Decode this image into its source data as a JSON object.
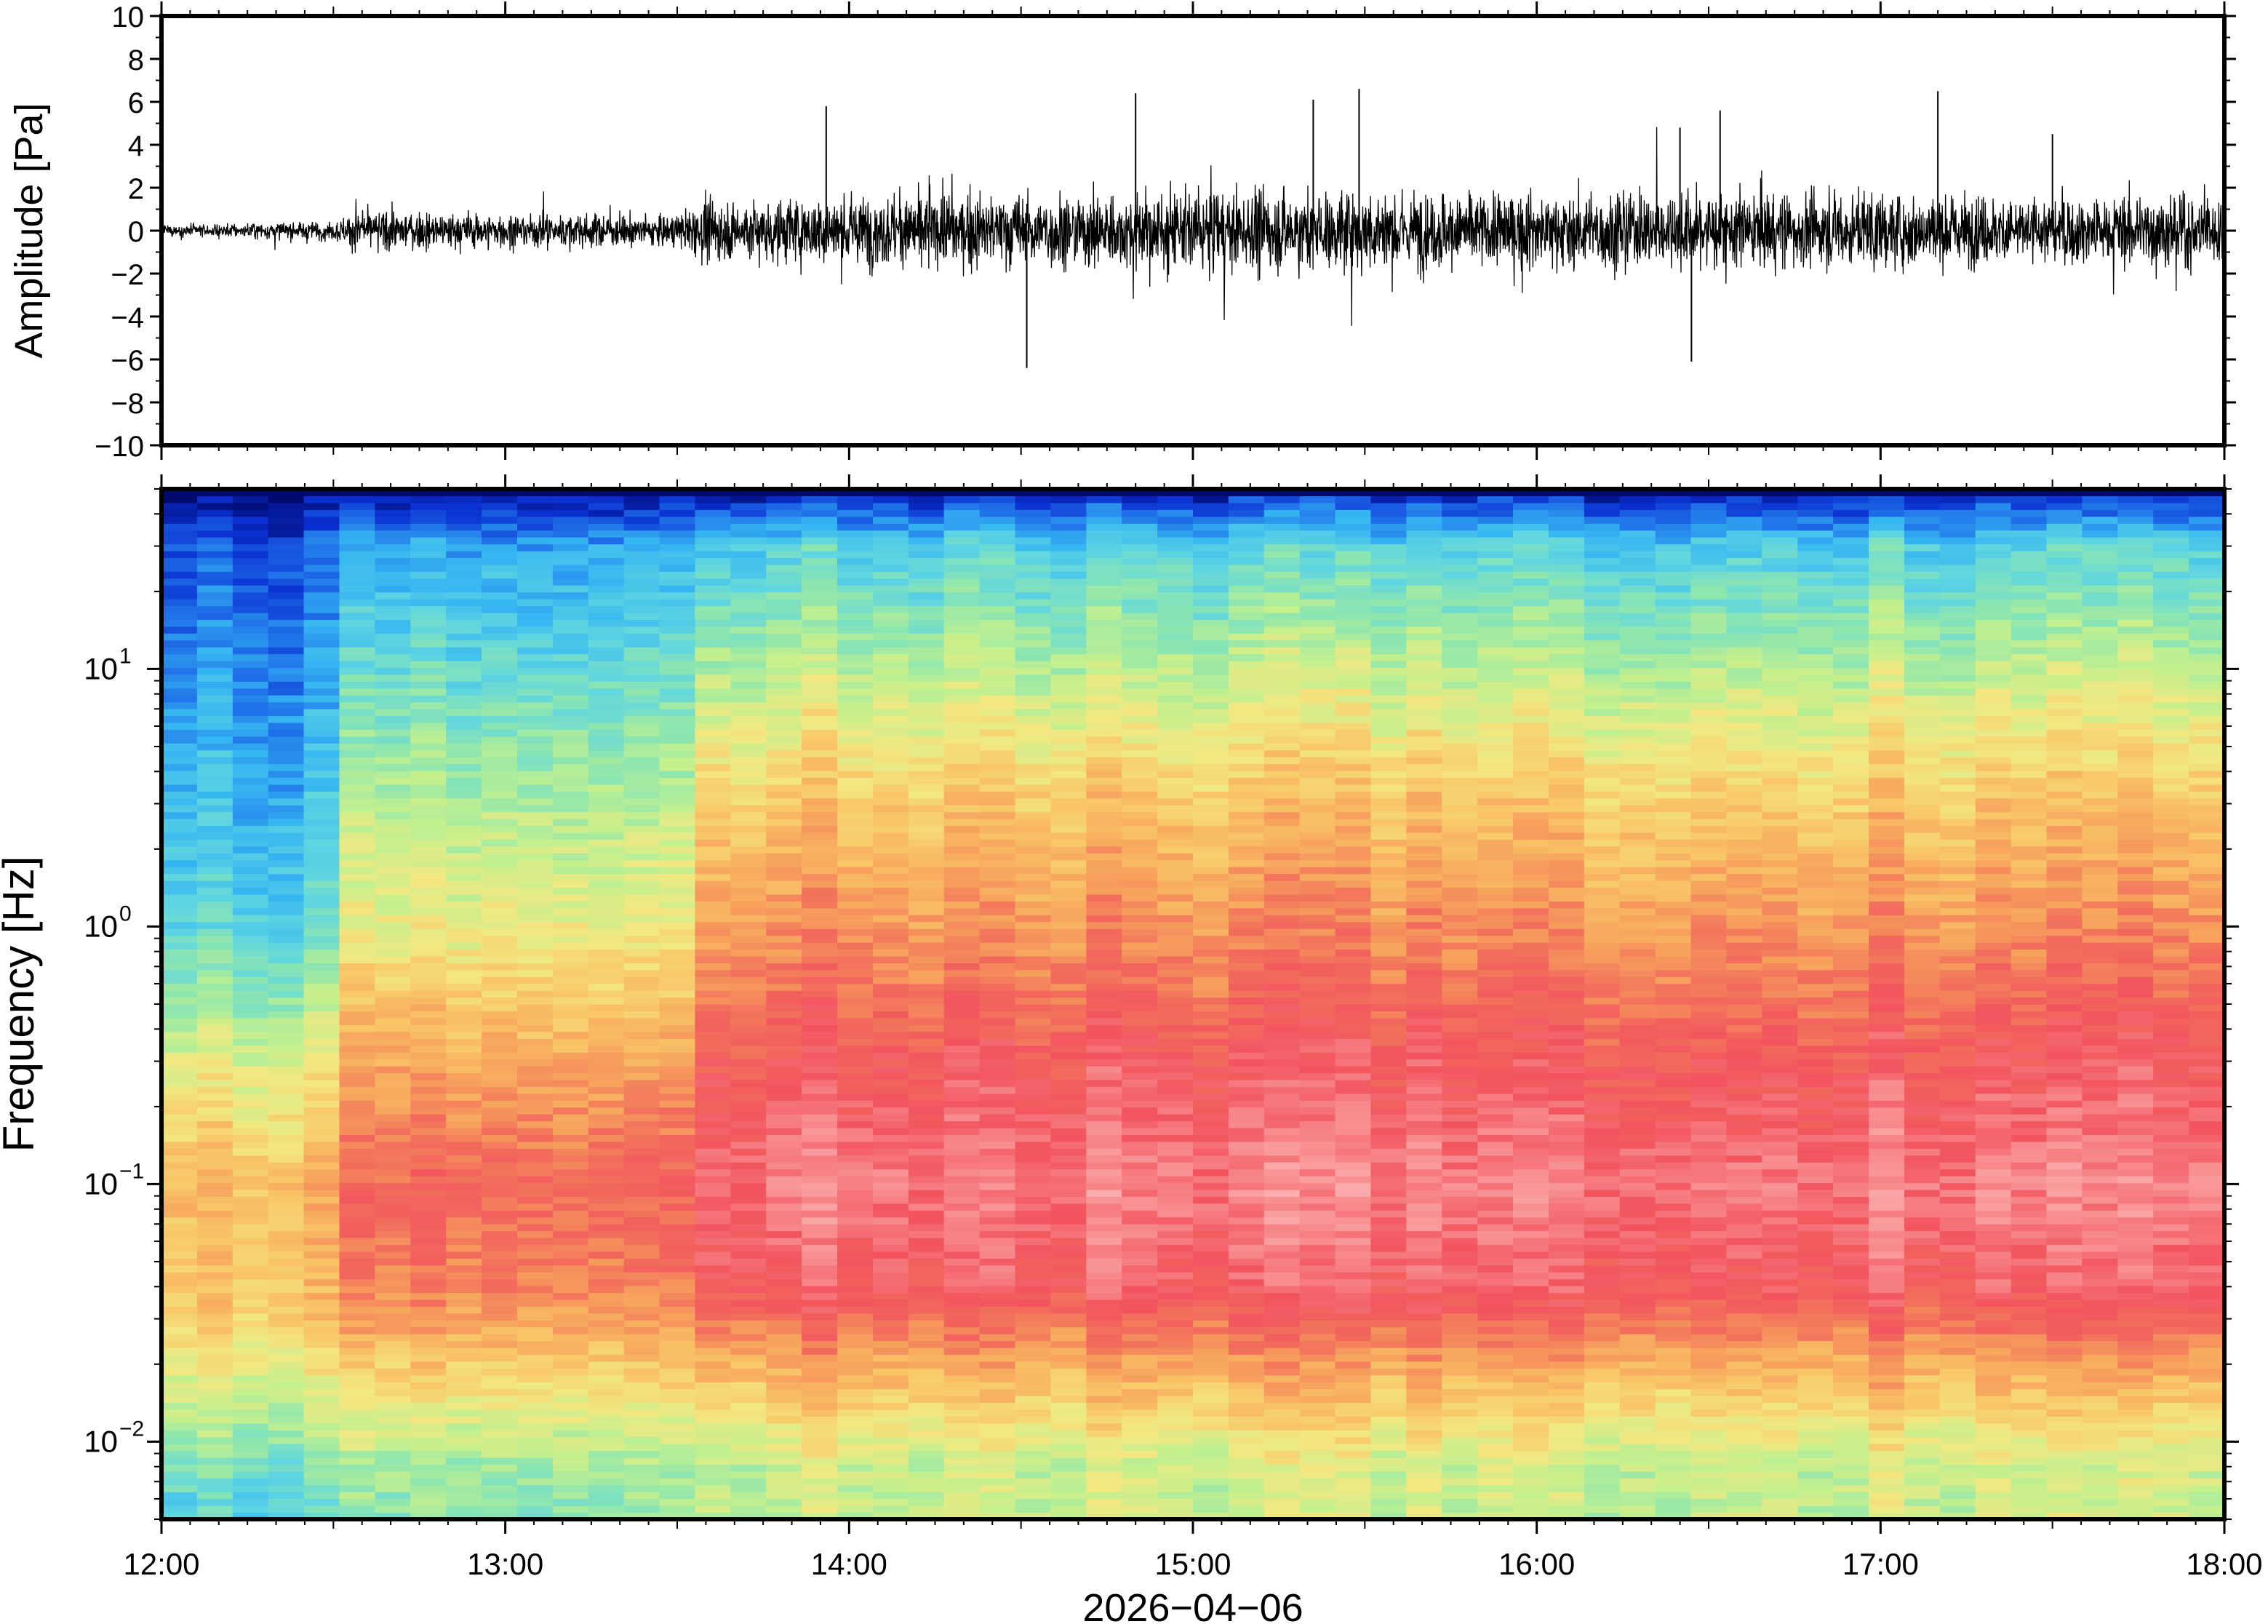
{
  "chart_data": [
    {
      "type": "line",
      "ylabel": "Amplitude [Pa]",
      "ylim": [
        -10,
        10
      ],
      "y_ticks": [
        "10",
        "8",
        "6",
        "4",
        "2",
        "0",
        "−2",
        "−4",
        "−6",
        "−8",
        "−10"
      ],
      "y_tick_values": [
        10,
        8,
        6,
        4,
        2,
        0,
        -2,
        -4,
        -6,
        -8,
        -10
      ],
      "xlim": [
        "12:00",
        "18:00"
      ],
      "grid": false,
      "series": [
        {
          "color": "#000000",
          "envelope": {
            "time": [
              "12:00",
              "12:30",
              "12:34",
              "13:00",
              "13:30",
              "13:35",
              "14:00",
              "14:30",
              "15:00",
              "15:30",
              "16:00",
              "16:30",
              "17:00",
              "17:30",
              "18:00"
            ],
            "amplitude": [
              0.3,
              0.5,
              1.0,
              0.9,
              0.8,
              1.5,
              1.8,
              1.9,
              2.0,
              2.1,
              1.9,
              2.0,
              1.9,
              1.7,
              1.8
            ]
          },
          "spikes": [
            {
              "time": "13:56",
              "value": 5.8
            },
            {
              "time": "14:31",
              "value": -6.4
            },
            {
              "time": "14:50",
              "value": 6.4
            },
            {
              "time": "15:21",
              "value": 6.1
            },
            {
              "time": "15:29",
              "value": 6.6
            },
            {
              "time": "16:25",
              "value": 4.8
            },
            {
              "time": "16:27",
              "value": -6.1
            },
            {
              "time": "16:32",
              "value": 5.6
            },
            {
              "time": "17:10",
              "value": 6.5
            },
            {
              "time": "17:30",
              "value": 4.5
            }
          ]
        }
      ]
    },
    {
      "type": "heatmap",
      "ylabel": "Frequency [Hz]",
      "yscale": "log",
      "ylim": [
        0.005,
        50
      ],
      "y_ticks": [
        {
          "base": "10",
          "exp": "1",
          "value": 10
        },
        {
          "base": "10",
          "exp": "0",
          "value": 1
        },
        {
          "base": "10",
          "exp": "−1",
          "value": 0.1
        },
        {
          "base": "10",
          "exp": "−2",
          "value": 0.01
        }
      ],
      "xlim": [
        "12:00",
        "18:00"
      ],
      "x_ticks": [
        "12:00",
        "13:00",
        "14:00",
        "15:00",
        "16:00",
        "17:00",
        "18:00"
      ],
      "xlabel": "2026−04−06",
      "colormap": "rainbow (blue = low, red/pink = high)",
      "colormap_colors": [
        "#000a6e",
        "#0a2fd0",
        "#1f6fe8",
        "#36b6f2",
        "#60d6e0",
        "#8de6b0",
        "#c4f08e",
        "#f2e882",
        "#f9c768",
        "#f7a35d",
        "#f26f5c",
        "#f2545e",
        "#f7878a",
        "#fcb0b0"
      ],
      "level_profile_quiet_12_00_to_12_33": [
        {
          "freq": 50,
          "level": 0.0
        },
        {
          "freq": 30,
          "level": 0.14
        },
        {
          "freq": 10,
          "level": 0.2
        },
        {
          "freq": 1,
          "level": 0.32
        },
        {
          "freq": 0.3,
          "level": 0.52
        },
        {
          "freq": 0.1,
          "level": 0.66
        },
        {
          "freq": 0.03,
          "level": 0.62
        },
        {
          "freq": 0.01,
          "level": 0.42
        },
        {
          "freq": 0.005,
          "level": 0.3
        }
      ],
      "level_profile_active_13_35_to_18_00": [
        {
          "freq": 50,
          "level": 0.05
        },
        {
          "freq": 30,
          "level": 0.3
        },
        {
          "freq": 10,
          "level": 0.46
        },
        {
          "freq": 3,
          "level": 0.62
        },
        {
          "freq": 1,
          "level": 0.72
        },
        {
          "freq": 0.3,
          "level": 0.84
        },
        {
          "freq": 0.1,
          "level": 0.92
        },
        {
          "freq": 0.04,
          "level": 0.86
        },
        {
          "freq": 0.02,
          "level": 0.68
        },
        {
          "freq": 0.008,
          "level": 0.48
        }
      ]
    }
  ]
}
